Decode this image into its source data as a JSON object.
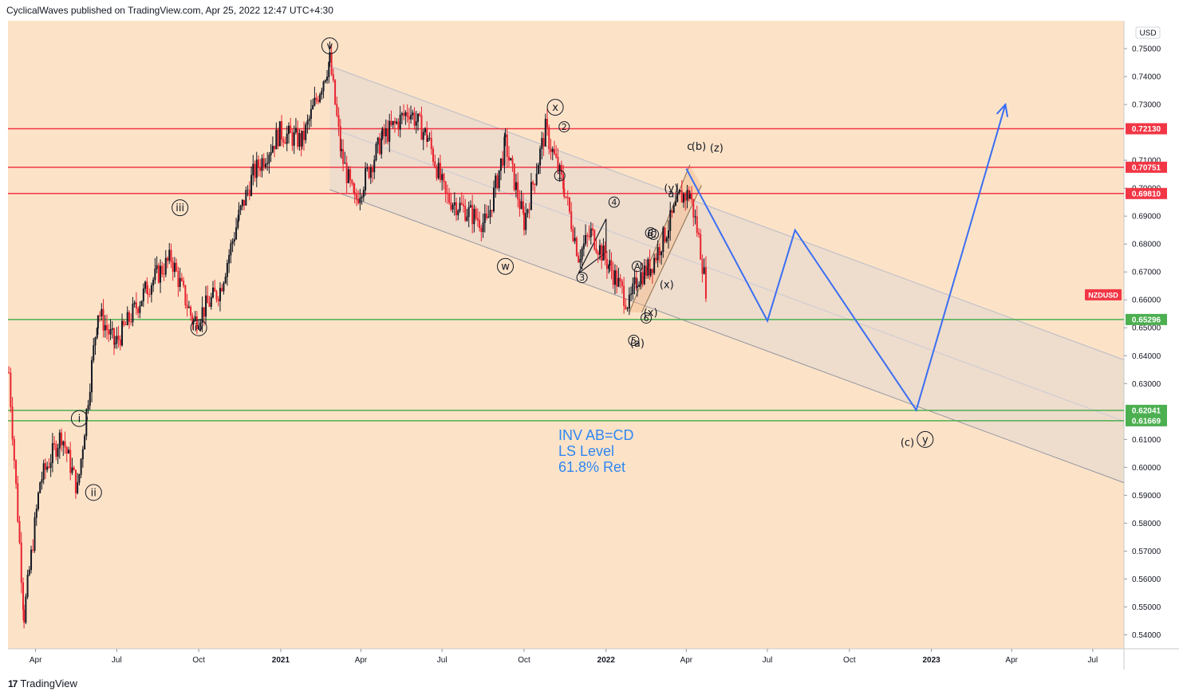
{
  "header": {
    "publisher_line": "CyclicalWaves published on TradingView.com, Apr 25, 2022 12:47 UTC+4:30"
  },
  "footer": {
    "brand": "TradingView",
    "logo_glyph": "17"
  },
  "chart_data": {
    "type": "candlestick",
    "symbol": "NZDUSD",
    "currency": "USD",
    "y_axis": {
      "ylim": [
        0.535,
        0.76
      ],
      "ticks": [
        "0.75000",
        "0.74000",
        "0.73000",
        "0.71000",
        "0.70000",
        "0.69000",
        "0.68000",
        "0.67000",
        "0.66000",
        "0.65000",
        "0.64000",
        "0.63000",
        "0.61000",
        "0.60000",
        "0.59000",
        "0.58000",
        "0.57000",
        "0.56000",
        "0.55000",
        "0.54000"
      ]
    },
    "x_axis": {
      "range": [
        "2020-03-01",
        "2023-08-05"
      ],
      "ticks": [
        {
          "date": "2020-04-01",
          "label": "Apr"
        },
        {
          "date": "2020-07-01",
          "label": "Jul"
        },
        {
          "date": "2020-10-01",
          "label": "Oct"
        },
        {
          "date": "2021-01-01",
          "label": "2021",
          "bold": true
        },
        {
          "date": "2021-04-01",
          "label": "Apr"
        },
        {
          "date": "2021-07-01",
          "label": "Jul"
        },
        {
          "date": "2021-10-01",
          "label": "Oct"
        },
        {
          "date": "2022-01-01",
          "label": "2022",
          "bold": true
        },
        {
          "date": "2022-04-01",
          "label": "Apr"
        },
        {
          "date": "2022-07-01",
          "label": "Jul"
        },
        {
          "date": "2022-10-01",
          "label": "Oct"
        },
        {
          "date": "2023-01-01",
          "label": "2023",
          "bold": true
        },
        {
          "date": "2023-04-01",
          "label": "Apr"
        },
        {
          "date": "2023-07-01",
          "label": "Jul"
        }
      ]
    },
    "price_path": [
      [
        "2020-03-02",
        0.634
      ],
      [
        "2020-03-19",
        0.547
      ],
      [
        "2020-04-06",
        0.595
      ],
      [
        "2020-04-30",
        0.612
      ],
      [
        "2020-05-18",
        0.592
      ],
      [
        "2020-06-10",
        0.656
      ],
      [
        "2020-06-29",
        0.644
      ],
      [
        "2020-08-05",
        0.665
      ],
      [
        "2020-08-31",
        0.675
      ],
      [
        "2020-09-25",
        0.652
      ],
      [
        "2020-10-25",
        0.664
      ],
      [
        "2020-11-15",
        0.69
      ],
      [
        "2020-12-01",
        0.705
      ],
      [
        "2020-12-31",
        0.72
      ],
      [
        "2021-01-25",
        0.717
      ],
      [
        "2021-02-25",
        0.746
      ],
      [
        "2021-03-10",
        0.712
      ],
      [
        "2021-03-25",
        0.695
      ],
      [
        "2021-04-25",
        0.718
      ],
      [
        "2021-05-25",
        0.728
      ],
      [
        "2021-06-15",
        0.718
      ],
      [
        "2021-07-05",
        0.697
      ],
      [
        "2021-08-20",
        0.687
      ],
      [
        "2021-09-10",
        0.716
      ],
      [
        "2021-10-01",
        0.688
      ],
      [
        "2021-10-25",
        0.721
      ],
      [
        "2021-11-15",
        0.7
      ],
      [
        "2021-12-01",
        0.676
      ],
      [
        "2021-12-15",
        0.684
      ],
      [
        "2022-01-05",
        0.672
      ],
      [
        "2022-01-27",
        0.658
      ],
      [
        "2022-02-05",
        0.668
      ],
      [
        "2022-02-20",
        0.672
      ],
      [
        "2022-03-10",
        0.685
      ],
      [
        "2022-03-25",
        0.697
      ],
      [
        "2022-04-05",
        0.698
      ],
      [
        "2022-04-15",
        0.682
      ],
      [
        "2022-04-25",
        0.66
      ]
    ],
    "horizontal_levels": [
      {
        "price": 0.7213,
        "label": "0.72130",
        "color": "#f23645"
      },
      {
        "price": 0.70751,
        "label": "0.70751",
        "color": "#f23645"
      },
      {
        "price": 0.6981,
        "label": "0.69810",
        "color": "#f23645"
      },
      {
        "price": 0.65296,
        "label": "0.65296",
        "color": "#4caf50"
      },
      {
        "price": 0.62041,
        "label": "0.62041",
        "color": "#4caf50"
      },
      {
        "price": 0.61669,
        "label": "0.61669",
        "color": "#4caf50"
      }
    ],
    "last_price_tag": {
      "label": "NZDUSD",
      "price": 0.6618,
      "color": "#f23645"
    },
    "channel": {
      "start_date": "2021-02-25",
      "end_date": "2023-08-05",
      "upper": [
        0.7438,
        0.6385
      ],
      "lower": [
        0.6995,
        0.5945
      ],
      "median": [
        0.7217,
        0.6165
      ]
    },
    "small_channel": {
      "a": [
        [
          "2022-01-27",
          0.6555
        ],
        [
          "2022-04-05",
          0.7084
        ]
      ],
      "b": [
        [
          "2022-02-10",
          0.6555
        ],
        [
          "2022-04-18",
          0.701
        ]
      ]
    },
    "small_triangle": [
      [
        "2021-12-01",
        0.6695
      ],
      [
        "2022-01-01",
        0.689
      ],
      [
        "2022-01-01",
        0.677
      ]
    ],
    "projection": [
      [
        "2022-04-01",
        0.707
      ],
      [
        "2022-07-01",
        0.6525
      ],
      [
        "2022-08-01",
        0.685
      ],
      [
        "2022-12-15",
        0.6205
      ],
      [
        "2023-03-25",
        0.73
      ]
    ],
    "wave_labels": [
      {
        "text": "v",
        "date": "2021-02-25",
        "price": 0.751,
        "circle": true
      },
      {
        "text": "iii",
        "date": "2020-09-10",
        "price": 0.693,
        "circle": true
      },
      {
        "text": "iv",
        "date": "2020-10-01",
        "price": 0.65,
        "circle": true
      },
      {
        "text": "i",
        "date": "2020-05-20",
        "price": 0.6175,
        "circle": true
      },
      {
        "text": "ii",
        "date": "2020-06-05",
        "price": 0.591,
        "circle": true
      },
      {
        "text": "w",
        "date": "2021-09-10",
        "price": 0.672,
        "circle": true
      },
      {
        "text": "x",
        "date": "2021-11-05",
        "price": 0.729,
        "circle": true
      },
      {
        "text": "2",
        "date": "2021-11-15",
        "price": 0.722,
        "circle": true,
        "small": true
      },
      {
        "text": "1",
        "date": "2021-11-10",
        "price": 0.7045,
        "circle": true,
        "small": true
      },
      {
        "text": "4",
        "date": "2022-01-10",
        "price": 0.695,
        "circle": true,
        "small": true
      },
      {
        "text": "3",
        "date": "2021-12-05",
        "price": 0.668,
        "circle": true,
        "small": true
      },
      {
        "text": "A",
        "date": "2022-02-05",
        "price": 0.672,
        "circle": true,
        "small": true
      },
      {
        "text": "B",
        "date": "2022-02-20",
        "price": 0.684,
        "circle": true,
        "small": true
      },
      {
        "text": "C",
        "date": "2022-02-23",
        "price": 0.6835,
        "circle": true,
        "small": true
      },
      {
        "text": "5",
        "date": "2022-02-01",
        "price": 0.6455,
        "circle": true,
        "small": true
      },
      {
        "text": "6",
        "date": "2022-02-15",
        "price": 0.6535,
        "circle": true,
        "small": true
      },
      {
        "text": "(a)",
        "date": "2022-02-05",
        "price": 0.6445
      },
      {
        "text": "(x)",
        "date": "2022-02-20",
        "price": 0.6555
      },
      {
        "text": "(x)",
        "date": "2022-03-10",
        "price": 0.6655
      },
      {
        "text": "(y)",
        "date": "2022-03-15",
        "price": 0.7
      },
      {
        "text": "a",
        "date": "2022-03-15",
        "price": 0.698
      },
      {
        "text": "c",
        "date": "2022-04-05",
        "price": 0.715
      },
      {
        "text": "(b)",
        "date": "2022-04-15",
        "price": 0.715
      },
      {
        "text": "(z)",
        "date": "2022-05-05",
        "price": 0.7145
      },
      {
        "text": "(c)",
        "date": "2022-12-05",
        "price": 0.609
      },
      {
        "text": "y",
        "date": "2022-12-25",
        "price": 0.61,
        "circle": true
      }
    ],
    "annotation": [
      "INV AB=CD",
      "LS Level",
      "61.8% Ret"
    ]
  }
}
